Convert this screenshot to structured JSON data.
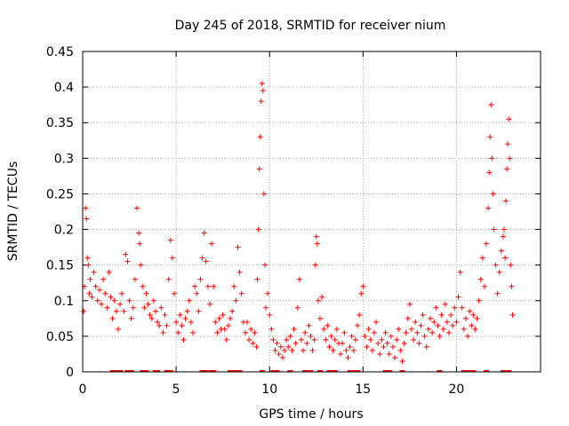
{
  "chart_data": {
    "type": "scatter",
    "title": "Day 245 of 2018, SRMTID for receiver nium",
    "xlabel": "GPS time / hours",
    "ylabel": "SRMTID / TECUs",
    "xlim": [
      0,
      24.5
    ],
    "ylim": [
      0,
      0.45
    ],
    "xticks": [
      0,
      5,
      10,
      15,
      20
    ],
    "xtick_labels": [
      "0",
      "5",
      "10",
      "15",
      "20"
    ],
    "yticks": [
      0,
      0.05,
      0.1,
      0.15,
      0.2,
      0.25,
      0.3,
      0.35,
      0.4,
      0.45
    ],
    "ytick_labels": [
      "0",
      "0.05",
      "0.1",
      "0.15",
      "0.2",
      "0.25",
      "0.3",
      "0.35",
      "0.4",
      "0.45"
    ],
    "grid": true,
    "marker": "+",
    "color": "#ff0000",
    "series": [
      {
        "name": "SRMTID",
        "points": [
          [
            0.05,
            0.085
          ],
          [
            0.1,
            0.12
          ],
          [
            0.15,
            0.23
          ],
          [
            0.2,
            0.215
          ],
          [
            0.25,
            0.16
          ],
          [
            0.3,
            0.15
          ],
          [
            0.35,
            0.11
          ],
          [
            0.4,
            0.13
          ],
          [
            0.5,
            0.105
          ],
          [
            0.6,
            0.14
          ],
          [
            0.7,
            0.12
          ],
          [
            0.8,
            0.1
          ],
          [
            0.9,
            0.115
          ],
          [
            1.0,
            0.095
          ],
          [
            1.1,
            0.13
          ],
          [
            1.2,
            0.11
          ],
          [
            1.3,
            0.09
          ],
          [
            1.4,
            0.14
          ],
          [
            1.5,
            0.105
          ],
          [
            1.6,
            0.075
          ],
          [
            1.7,
            0.1
          ],
          [
            1.8,
            0.085
          ],
          [
            1.9,
            0.06
          ],
          [
            2.0,
            0.095
          ],
          [
            2.1,
            0.11
          ],
          [
            2.2,
            0.085
          ],
          [
            2.3,
            0.165
          ],
          [
            2.4,
            0.155
          ],
          [
            2.5,
            0.1
          ],
          [
            2.6,
            0.075
          ],
          [
            2.7,
            0.09
          ],
          [
            2.8,
            0.13
          ],
          [
            2.9,
            0.23
          ],
          [
            3.0,
            0.195
          ],
          [
            3.05,
            0.18
          ],
          [
            3.1,
            0.15
          ],
          [
            3.2,
            0.12
          ],
          [
            3.3,
            0.09
          ],
          [
            3.4,
            0.11
          ],
          [
            3.5,
            0.095
          ],
          [
            3.6,
            0.08
          ],
          [
            3.7,
            0.075
          ],
          [
            3.8,
            0.1
          ],
          [
            3.9,
            0.085
          ],
          [
            4.0,
            0.07
          ],
          [
            4.1,
            0.065
          ],
          [
            4.2,
            0.09
          ],
          [
            4.3,
            0.055
          ],
          [
            4.4,
            0.08
          ],
          [
            4.5,
            0.065
          ],
          [
            4.6,
            0.13
          ],
          [
            4.7,
            0.185
          ],
          [
            4.8,
            0.16
          ],
          [
            4.9,
            0.11
          ],
          [
            5.0,
            0.07
          ],
          [
            5.1,
            0.055
          ],
          [
            5.2,
            0.08
          ],
          [
            5.3,
            0.065
          ],
          [
            5.4,
            0.045
          ],
          [
            5.5,
            0.075
          ],
          [
            5.6,
            0.085
          ],
          [
            5.7,
            0.1
          ],
          [
            5.8,
            0.07
          ],
          [
            5.9,
            0.055
          ],
          [
            6.0,
            0.12
          ],
          [
            6.1,
            0.11
          ],
          [
            6.2,
            0.085
          ],
          [
            6.3,
            0.13
          ],
          [
            6.4,
            0.16
          ],
          [
            6.5,
            0.195
          ],
          [
            6.6,
            0.155
          ],
          [
            6.7,
            0.12
          ],
          [
            6.8,
            0.095
          ],
          [
            6.9,
            0.18
          ],
          [
            7.0,
            0.12
          ],
          [
            7.1,
            0.07
          ],
          [
            7.2,
            0.055
          ],
          [
            7.3,
            0.075
          ],
          [
            7.4,
            0.06
          ],
          [
            7.5,
            0.08
          ],
          [
            7.6,
            0.06
          ],
          [
            7.7,
            0.045
          ],
          [
            7.8,
            0.065
          ],
          [
            7.9,
            0.075
          ],
          [
            8.0,
            0.085
          ],
          [
            8.1,
            0.12
          ],
          [
            8.2,
            0.1
          ],
          [
            8.3,
            0.175
          ],
          [
            8.4,
            0.14
          ],
          [
            8.5,
            0.11
          ],
          [
            8.6,
            0.07
          ],
          [
            8.7,
            0.055
          ],
          [
            8.8,
            0.07
          ],
          [
            8.9,
            0.045
          ],
          [
            9.0,
            0.06
          ],
          [
            9.1,
            0.04
          ],
          [
            9.2,
            0.055
          ],
          [
            9.3,
            0.035
          ],
          [
            9.35,
            0.13
          ],
          [
            9.4,
            0.2
          ],
          [
            9.45,
            0.285
          ],
          [
            9.5,
            0.33
          ],
          [
            9.55,
            0.38
          ],
          [
            9.6,
            0.405
          ],
          [
            9.65,
            0.395
          ],
          [
            9.7,
            0.25
          ],
          [
            9.75,
            0.15
          ],
          [
            9.8,
            0.09
          ],
          [
            9.9,
            0.11
          ],
          [
            10.0,
            0.08
          ],
          [
            10.1,
            0.06
          ],
          [
            10.2,
            0.045
          ],
          [
            10.3,
            0.03
          ],
          [
            10.4,
            0.04
          ],
          [
            10.5,
            0.025
          ],
          [
            10.6,
            0.035
          ],
          [
            10.7,
            0.02
          ],
          [
            10.8,
            0.03
          ],
          [
            10.9,
            0.045
          ],
          [
            11.0,
            0.035
          ],
          [
            11.1,
            0.05
          ],
          [
            11.2,
            0.03
          ],
          [
            11.3,
            0.06
          ],
          [
            11.4,
            0.04
          ],
          [
            11.5,
            0.09
          ],
          [
            11.6,
            0.13
          ],
          [
            11.7,
            0.045
          ],
          [
            11.8,
            0.03
          ],
          [
            11.9,
            0.055
          ],
          [
            12.0,
            0.04
          ],
          [
            12.1,
            0.065
          ],
          [
            12.2,
            0.05
          ],
          [
            12.3,
            0.03
          ],
          [
            12.4,
            0.045
          ],
          [
            12.45,
            0.15
          ],
          [
            12.5,
            0.19
          ],
          [
            12.55,
            0.18
          ],
          [
            12.6,
            0.1
          ],
          [
            12.7,
            0.075
          ],
          [
            12.8,
            0.105
          ],
          [
            12.9,
            0.06
          ],
          [
            13.0,
            0.045
          ],
          [
            13.1,
            0.065
          ],
          [
            13.2,
            0.035
          ],
          [
            13.3,
            0.05
          ],
          [
            13.4,
            0.03
          ],
          [
            13.5,
            0.045
          ],
          [
            13.6,
            0.06
          ],
          [
            13.7,
            0.04
          ],
          [
            13.8,
            0.025
          ],
          [
            13.9,
            0.04
          ],
          [
            14.0,
            0.055
          ],
          [
            14.1,
            0.03
          ],
          [
            14.2,
            0.02
          ],
          [
            14.3,
            0.035
          ],
          [
            14.4,
            0.05
          ],
          [
            14.5,
            0.03
          ],
          [
            14.6,
            0.045
          ],
          [
            14.7,
            0.065
          ],
          [
            14.8,
            0.08
          ],
          [
            14.9,
            0.11
          ],
          [
            15.0,
            0.12
          ],
          [
            15.1,
            0.05
          ],
          [
            15.2,
            0.035
          ],
          [
            15.3,
            0.06
          ],
          [
            15.4,
            0.045
          ],
          [
            15.5,
            0.03
          ],
          [
            15.6,
            0.055
          ],
          [
            15.7,
            0.07
          ],
          [
            15.8,
            0.04
          ],
          [
            15.9,
            0.025
          ],
          [
            16.0,
            0.045
          ],
          [
            16.1,
            0.035
          ],
          [
            16.2,
            0.055
          ],
          [
            16.3,
            0.04
          ],
          [
            16.4,
            0.025
          ],
          [
            16.5,
            0.05
          ],
          [
            16.6,
            0.035
          ],
          [
            16.7,
            0.02
          ],
          [
            16.8,
            0.045
          ],
          [
            16.9,
            0.06
          ],
          [
            17.0,
            0.03
          ],
          [
            17.1,
            0.015
          ],
          [
            17.2,
            0.04
          ],
          [
            17.3,
            0.055
          ],
          [
            17.4,
            0.075
          ],
          [
            17.5,
            0.095
          ],
          [
            17.6,
            0.06
          ],
          [
            17.7,
            0.045
          ],
          [
            17.8,
            0.07
          ],
          [
            17.9,
            0.055
          ],
          [
            18.0,
            0.04
          ],
          [
            18.1,
            0.065
          ],
          [
            18.2,
            0.08
          ],
          [
            18.3,
            0.05
          ],
          [
            18.4,
            0.035
          ],
          [
            18.5,
            0.06
          ],
          [
            18.6,
            0.075
          ],
          [
            18.7,
            0.055
          ],
          [
            18.8,
            0.07
          ],
          [
            18.9,
            0.09
          ],
          [
            19.0,
            0.065
          ],
          [
            19.1,
            0.05
          ],
          [
            19.2,
            0.08
          ],
          [
            19.3,
            0.06
          ],
          [
            19.4,
            0.095
          ],
          [
            19.5,
            0.07
          ],
          [
            19.6,
            0.055
          ],
          [
            19.7,
            0.08
          ],
          [
            19.8,
            0.065
          ],
          [
            19.9,
            0.09
          ],
          [
            20.0,
            0.07
          ],
          [
            20.1,
            0.105
          ],
          [
            20.2,
            0.14
          ],
          [
            20.3,
            0.09
          ],
          [
            20.4,
            0.06
          ],
          [
            20.5,
            0.075
          ],
          [
            20.6,
            0.05
          ],
          [
            20.7,
            0.085
          ],
          [
            20.8,
            0.065
          ],
          [
            20.9,
            0.08
          ],
          [
            21.0,
            0.06
          ],
          [
            21.1,
            0.075
          ],
          [
            21.2,
            0.1
          ],
          [
            21.3,
            0.13
          ],
          [
            21.4,
            0.16
          ],
          [
            21.5,
            0.12
          ],
          [
            21.6,
            0.18
          ],
          [
            21.7,
            0.23
          ],
          [
            21.75,
            0.28
          ],
          [
            21.8,
            0.33
          ],
          [
            21.85,
            0.375
          ],
          [
            21.9,
            0.3
          ],
          [
            21.95,
            0.25
          ],
          [
            22.0,
            0.2
          ],
          [
            22.1,
            0.15
          ],
          [
            22.2,
            0.11
          ],
          [
            22.3,
            0.14
          ],
          [
            22.4,
            0.17
          ],
          [
            22.5,
            0.19
          ],
          [
            22.55,
            0.2
          ],
          [
            22.6,
            0.16
          ],
          [
            22.65,
            0.24
          ],
          [
            22.7,
            0.285
          ],
          [
            22.75,
            0.32
          ],
          [
            22.8,
            0.355
          ],
          [
            22.85,
            0.3
          ],
          [
            22.9,
            0.15
          ],
          [
            22.95,
            0.12
          ],
          [
            23.0,
            0.08
          ]
        ]
      }
    ],
    "zero_line_hours": [
      1.6,
      1.8,
      2.0,
      2.4,
      2.6,
      3.2,
      3.4,
      3.9,
      4.0,
      4.5,
      4.7,
      6.4,
      6.6,
      6.9,
      7.0,
      7.9,
      8.1,
      8.4,
      9.6,
      10.2,
      10.4,
      11.1,
      11.9,
      12.2,
      12.7,
      13.2,
      13.5,
      14.3,
      14.5,
      14.7,
      16.2,
      16.4,
      17.1,
      19.1,
      20.4,
      20.6,
      20.9,
      21.6,
      22.5,
      22.8
    ]
  }
}
